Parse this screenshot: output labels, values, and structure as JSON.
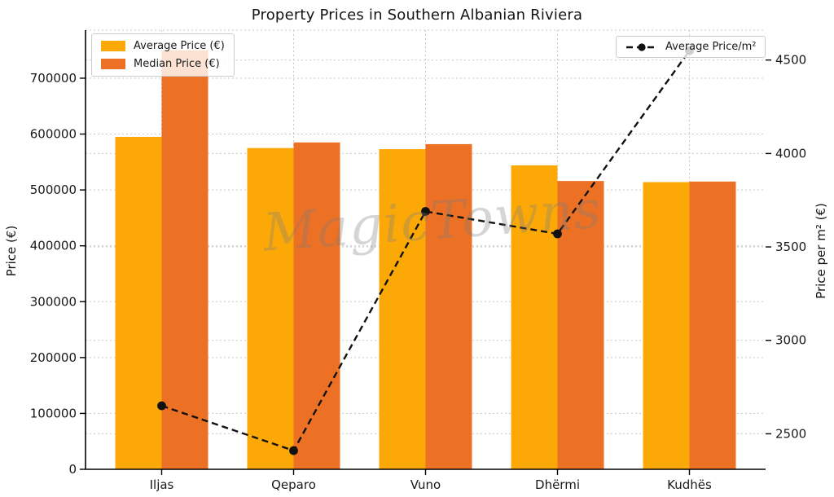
{
  "title": "Property Prices in Southern Albanian Riviera",
  "watermark": "MagicTowns",
  "chart_data": {
    "type": "bar",
    "categories": [
      "Iljas",
      "Qeparo",
      "Vuno",
      "Dhërmi",
      "Kudhës"
    ],
    "series": [
      {
        "name": "Average Price (€)",
        "type": "bar",
        "axis": "left",
        "color": "#FCA908",
        "values": [
          595000,
          575000,
          573000,
          544000,
          514000
        ]
      },
      {
        "name": "Median Price (€)",
        "type": "bar",
        "axis": "left",
        "color": "#ED7124",
        "values": [
          750000,
          585000,
          582000,
          516000,
          515000
        ]
      },
      {
        "name": "Average Price/m²",
        "type": "line",
        "axis": "right",
        "color": "#111111",
        "line_style": "dashed",
        "marker": "circle",
        "values": [
          2650,
          2410,
          3690,
          3570,
          4550
        ]
      }
    ],
    "left_axis": {
      "label": "Price (€)",
      "ticks": [
        0,
        100000,
        200000,
        300000,
        400000,
        500000,
        600000,
        700000
      ],
      "range": [
        0,
        786000
      ]
    },
    "right_axis": {
      "label": "Price per m² (€)",
      "ticks": [
        2500,
        3000,
        3500,
        4000,
        4500
      ],
      "range": [
        2310,
        4660
      ]
    },
    "grid": true,
    "grid_style": "dashed",
    "legend_positions": {
      "bars": "upper left",
      "line": "upper right"
    }
  }
}
